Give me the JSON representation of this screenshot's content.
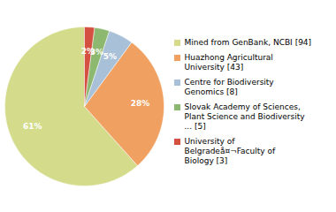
{
  "chart_data": {
    "type": "pie",
    "categories": [
      "Mined from GenBank, NCBI [94]",
      "Huazhong Agricultural\nUniversity [43]",
      "Centre for Biodiversity\nGenomics [8]",
      "Slovak Academy of Sciences,\nPlant Science and Biodiversity\n... [5]",
      "University of\nBelgradeå¤¬Faculty of\nBiology [3]"
    ],
    "values": [
      61,
      28,
      5,
      3,
      2
    ],
    "value_labels": [
      "61%",
      "28%",
      "5%",
      "3%",
      "2%"
    ],
    "colors": [
      "#d4dc8c",
      "#f0a060",
      "#a8c0d8",
      "#8db870",
      "#d45040"
    ],
    "data_labels": true,
    "legend": "right"
  }
}
